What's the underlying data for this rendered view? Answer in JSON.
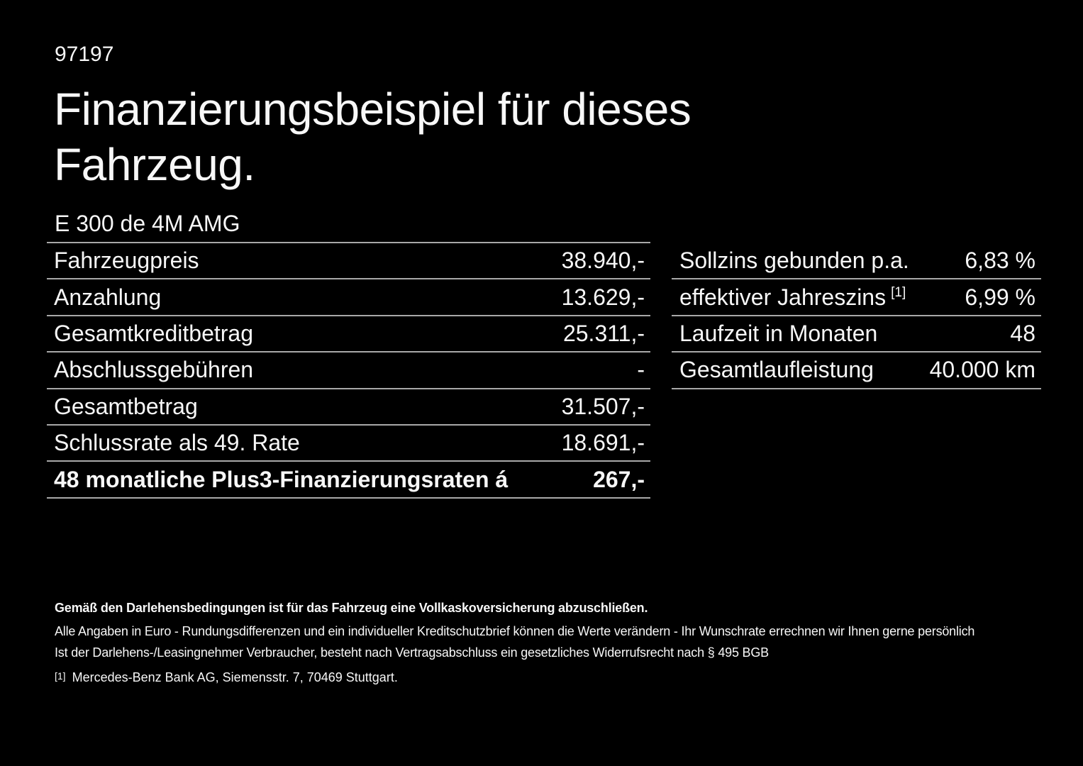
{
  "page": {
    "background_color": "#000000",
    "text_color": "#f7f7f7",
    "divider_color": "#a8a8a8"
  },
  "header": {
    "document_number": "97197",
    "title_line1": "Finanzierungsbeispiel für dieses",
    "title_line2": "Fahrzeug.",
    "vehicle_model": "E 300 de 4M AMG"
  },
  "finance_table": {
    "rows": [
      {
        "label": "Fahrzeugpreis",
        "value": "38.940,-",
        "bold": false
      },
      {
        "label": "Anzahlung",
        "value": "13.629,-",
        "bold": false
      },
      {
        "label": "Gesamtkreditbetrag",
        "value": "25.311,-",
        "bold": false
      },
      {
        "label": "Abschlussgebühren",
        "value": "-",
        "bold": false
      },
      {
        "label": "Gesamtbetrag",
        "value": "31.507,-",
        "bold": false
      },
      {
        "label": "Schlussrate als 49. Rate",
        "value": "18.691,-",
        "bold": false
      },
      {
        "label": "48 monatliche Plus3-Finanzierungsraten á",
        "value": "267,-",
        "bold": true
      }
    ]
  },
  "conditions_table": {
    "rows": [
      {
        "label": "Sollzins gebunden p.a.",
        "superscript": "",
        "value": "6,83 %"
      },
      {
        "label": "effektiver Jahreszins",
        "superscript": "[1]",
        "value": "6,99 %"
      },
      {
        "label": "Laufzeit in Monaten",
        "superscript": "",
        "value": "48"
      },
      {
        "label": "Gesamtlaufleistung",
        "superscript": "",
        "value": "40.000 km"
      }
    ]
  },
  "footer": {
    "insurance_note": "Gemäß den Darlehensbedingungen ist für das Fahrzeug eine Vollkaskoversicherung abzuschließen.",
    "disclaimer_line1": "Alle Angaben in Euro - Rundungsdifferenzen und ein individueller Kreditschutzbrief können die Werte verändern - Ihr Wunschrate errechnen wir Ihnen gerne persönlich",
    "disclaimer_line2": "Ist der Darlehens-/Leasingnehmer Verbraucher, besteht nach Vertragsabschluss ein gesetzliches Widerrufsrecht nach § 495 BGB",
    "footnote_marker": "[1]",
    "footnote_text": "Mercedes-Benz Bank AG, Siemensstr. 7, 70469 Stuttgart."
  }
}
